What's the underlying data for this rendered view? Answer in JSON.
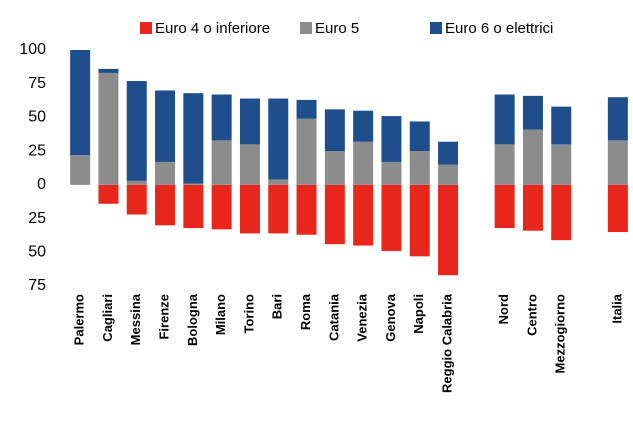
{
  "chart_data": {
    "type": "bar",
    "stacked": true,
    "categories": [
      "Palermo",
      "Cagliari",
      "Messina",
      "Firenze",
      "Bologna",
      "Milano",
      "Torino",
      "Bari",
      "Roma",
      "Catania",
      "Venezia",
      "Genova",
      "Napoli",
      "Reggio Calabria",
      null,
      "Nord",
      "Centro",
      "Mezzogiorno",
      null,
      "Italia"
    ],
    "series": [
      {
        "name": "Euro 4 o inferiore",
        "color": "#e8261c",
        "values": [
          0,
          -14,
          -22,
          -30,
          -32,
          -33,
          -36,
          -36,
          -37,
          -44,
          -45,
          -49,
          -53,
          -67,
          null,
          -32,
          -34,
          -41,
          null,
          -35
        ]
      },
      {
        "name": "Euro 5",
        "color": "#8c8c8c",
        "values": [
          22,
          83,
          3,
          17,
          1,
          33,
          30,
          4,
          49,
          25,
          32,
          17,
          25,
          15,
          null,
          30,
          41,
          30,
          null,
          33
        ]
      },
      {
        "name": "Euro 6 o elettrici",
        "color": "#1f4e8c",
        "values": [
          78,
          3,
          74,
          53,
          67,
          34,
          34,
          60,
          14,
          31,
          23,
          34,
          22,
          17,
          null,
          37,
          25,
          28,
          null,
          32
        ]
      }
    ],
    "ylim": [
      -75,
      100
    ],
    "yticks": [
      100,
      75,
      50,
      25,
      0,
      {
        "value": -25,
        "label": "25"
      },
      {
        "value": -50,
        "label": "50"
      },
      {
        "value": -75,
        "label": "75"
      }
    ],
    "legend": "top"
  }
}
